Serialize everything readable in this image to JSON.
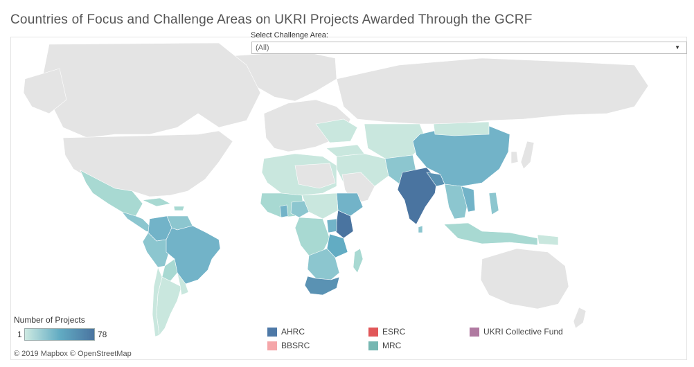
{
  "title": "Countries of Focus and Challenge Areas on UKRI Projects Awarded Through the GCRF",
  "filter": {
    "label": "Select Challenge Area:",
    "value": "(All)",
    "icon": "dropdown-arrow-icon"
  },
  "legend": {
    "title": "Number of Projects",
    "min": "1",
    "max": "78",
    "gradient_colors": [
      "#cde9e1",
      "#62acc3",
      "#4a74a0"
    ]
  },
  "categories": [
    {
      "label": "AHRC",
      "color": "#4e79a7"
    },
    {
      "label": "BBSRC",
      "color": "#f5a6a9"
    },
    {
      "label": "ESRC",
      "color": "#e15759"
    },
    {
      "label": "MRC",
      "color": "#76b7b2"
    },
    {
      "label": "UKRI Collective Fund",
      "color": "#b07aa1"
    }
  ],
  "attribution": "© 2019 Mapbox © OpenStreetMap",
  "colors": {
    "land_none": "#e4e4e4",
    "border": "#ffffff",
    "low": "#c9e7de",
    "mid_low": "#a8d9d2",
    "mid": "#8cc6cf",
    "mid_high": "#72b3c8",
    "high": "#5a92b3",
    "top": "#4a74a0"
  }
}
